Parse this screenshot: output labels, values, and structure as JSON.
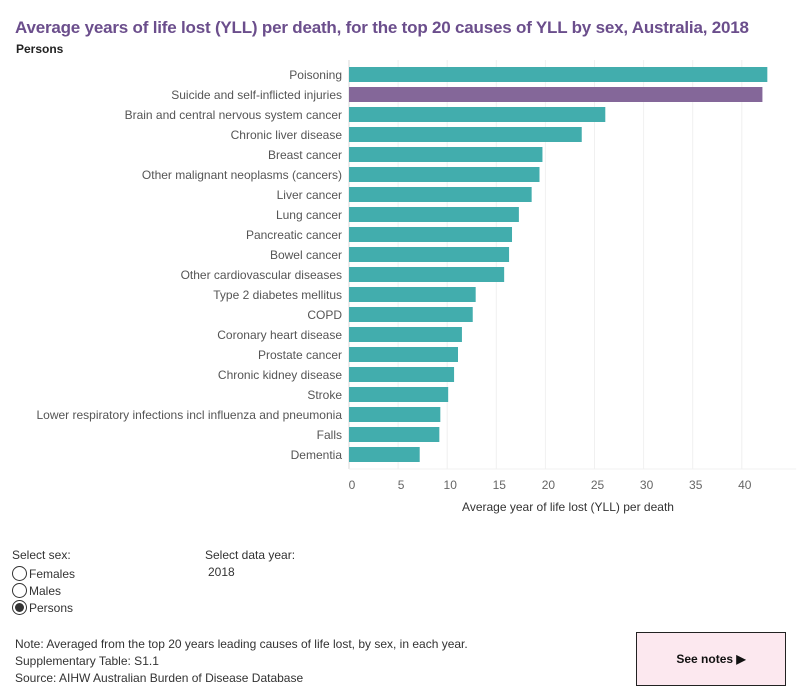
{
  "header": {
    "title": "Average years of life lost (YLL) per death, for the top 20 causes of YLL by sex, Australia, 2018",
    "subtitle": "Persons"
  },
  "chart_data": {
    "type": "bar",
    "orientation": "horizontal",
    "title": "Average years of life lost (YLL) per death, for the top 20 causes of YLL by sex, Australia, 2018",
    "subtitle": "Persons",
    "xlabel": "Average year of life lost (YLL) per death",
    "ylabel": "",
    "xlim": [
      0,
      43.5
    ],
    "xticks": [
      0,
      5,
      10,
      15,
      20,
      25,
      30,
      35,
      40
    ],
    "grid": true,
    "colors": {
      "default": "#42adad",
      "highlight": "#846799"
    },
    "categories": [
      "Poisoning",
      "Suicide and self-inflicted injuries",
      "Brain and central nervous system cancer",
      "Chronic liver disease",
      "Breast cancer",
      "Other malignant neoplasms (cancers)",
      "Liver cancer",
      "Lung cancer",
      "Pancreatic cancer",
      "Bowel cancer",
      "Other cardiovascular diseases",
      "Type 2 diabetes mellitus",
      "COPD",
      "Coronary heart disease",
      "Prostate cancer",
      "Chronic kidney disease",
      "Stroke",
      "Lower respiratory infections incl influenza and pneumonia",
      "Falls",
      "Dementia"
    ],
    "values": [
      42.6,
      42.1,
      26.1,
      23.7,
      19.7,
      19.4,
      18.6,
      17.3,
      16.6,
      16.3,
      15.8,
      12.9,
      12.6,
      11.5,
      11.1,
      10.7,
      10.1,
      9.3,
      9.2,
      7.2
    ],
    "highlighted": [
      "Suicide and self-inflicted injuries"
    ]
  },
  "controls": {
    "sex_label": "Select sex:",
    "sex_options": [
      {
        "label": "Females",
        "selected": false
      },
      {
        "label": "Males",
        "selected": false
      },
      {
        "label": "Persons",
        "selected": true
      }
    ],
    "year_label": "Select data year:",
    "year_value": "2018"
  },
  "footer": {
    "note_label": "Note:",
    "note_text": " Averaged from the top 20 years leading causes of life lost, by sex, in each year.",
    "supp": "Supplementary Table: S1.1",
    "source_label": "Source:",
    "source_text": " AIHW Australian Burden of Disease Database",
    "see_notes": "See notes ▶"
  }
}
